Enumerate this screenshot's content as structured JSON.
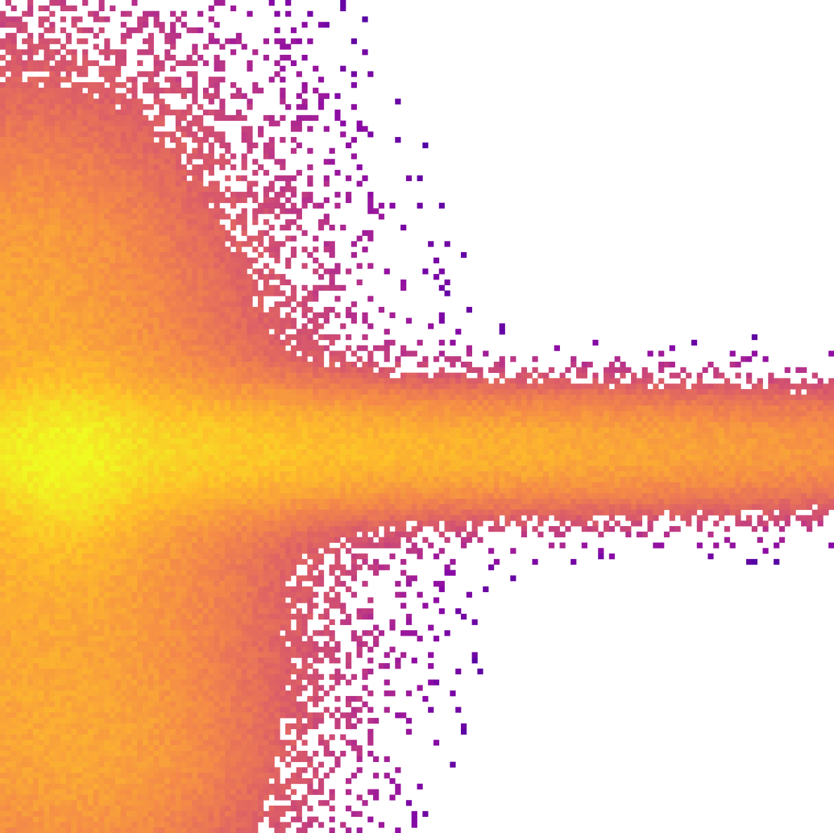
{
  "chart_data": {
    "type": "heatmap",
    "title": "",
    "xlabel": "",
    "ylabel": "",
    "axes_visible": false,
    "grid": false,
    "legend": "none",
    "colormap": "plasma",
    "colormap_stops": [
      "#0d0887",
      "#5302a3",
      "#8b0aa5",
      "#b83289",
      "#db5c68",
      "#f48849",
      "#febd2a",
      "#f0f921"
    ],
    "background": "#ffffff",
    "grid_size": {
      "cols": 152,
      "rows": 152
    },
    "density_components": [
      {
        "name": "horizontal-plume",
        "cx": 0.06,
        "cy": 0.54,
        "sx": 0.75,
        "sy": 0.045,
        "w": 1.0
      },
      {
        "name": "vertical-wedge",
        "cx": 0.03,
        "cy": 0.62,
        "sx": 0.18,
        "sy": 0.28,
        "w": 0.75
      },
      {
        "name": "core",
        "cx": 0.08,
        "cy": 0.56,
        "sx": 0.05,
        "sy": 0.06,
        "w": 1.0
      },
      {
        "name": "upper-wing",
        "cx": 0.02,
        "cy": 0.3,
        "sx": 0.1,
        "sy": 0.1,
        "w": 0.18
      },
      {
        "name": "lower-tail",
        "cx": 0.12,
        "cy": 0.92,
        "sx": 0.12,
        "sy": 0.08,
        "w": 0.25
      }
    ]
  }
}
